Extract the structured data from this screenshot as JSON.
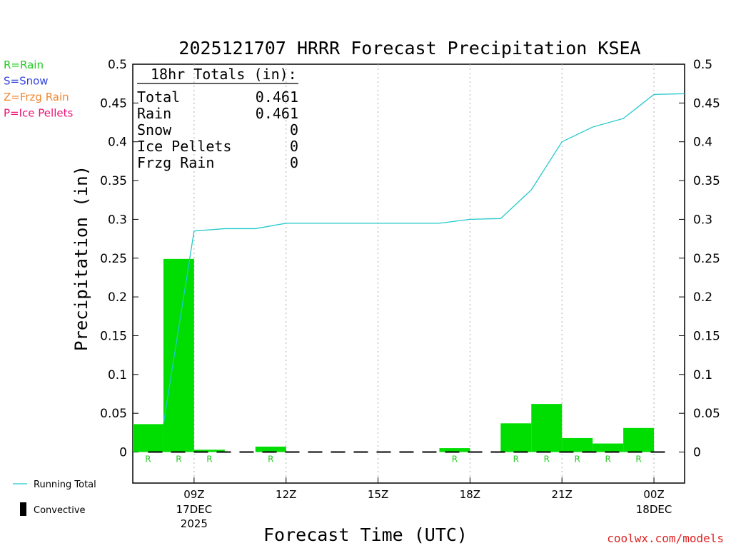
{
  "chart_data": {
    "type": "bar",
    "title": "2025121707 HRRR Forecast Precipitation KSEA",
    "ylabel": "Precipitation (in)",
    "xlabel": "Forecast Time (UTC)",
    "ylim": [
      -0.04,
      0.5
    ],
    "y_ticks": [
      "0.5",
      "0.45",
      "0.4",
      "0.35",
      "0.3",
      "0.25",
      "0.2",
      "0.15",
      "0.1",
      "0.05",
      "0"
    ],
    "y_tick_values": [
      0.5,
      0.45,
      0.4,
      0.35,
      0.3,
      0.25,
      0.2,
      0.15,
      0.1,
      0.05,
      0
    ],
    "x_ticks": [
      {
        "hour": 9,
        "line1": "09Z",
        "line2": "17DEC",
        "line3": "2025"
      },
      {
        "hour": 12,
        "line1": "12Z",
        "line2": "",
        "line3": ""
      },
      {
        "hour": 15,
        "line1": "15Z",
        "line2": "",
        "line3": ""
      },
      {
        "hour": 18,
        "line1": "18Z",
        "line2": "",
        "line3": ""
      },
      {
        "hour": 21,
        "line1": "21Z",
        "line2": "",
        "line3": ""
      },
      {
        "hour": 24,
        "line1": "00Z",
        "line2": "18DEC",
        "line3": ""
      }
    ],
    "xlim": [
      7,
      25
    ],
    "bars": [
      {
        "hour": 8,
        "value": 0.036,
        "ptype": "R"
      },
      {
        "hour": 9,
        "value": 0.249,
        "ptype": "R"
      },
      {
        "hour": 10,
        "value": 0.003,
        "ptype": "R"
      },
      {
        "hour": 11,
        "value": 0.0,
        "ptype": ""
      },
      {
        "hour": 12,
        "value": 0.007,
        "ptype": "R"
      },
      {
        "hour": 13,
        "value": 0.0,
        "ptype": ""
      },
      {
        "hour": 14,
        "value": 0.0,
        "ptype": ""
      },
      {
        "hour": 15,
        "value": 0.0,
        "ptype": ""
      },
      {
        "hour": 16,
        "value": 0.0,
        "ptype": ""
      },
      {
        "hour": 17,
        "value": 0.0,
        "ptype": ""
      },
      {
        "hour": 18,
        "value": 0.005,
        "ptype": "R"
      },
      {
        "hour": 19,
        "value": 0.0,
        "ptype": ""
      },
      {
        "hour": 20,
        "value": 0.037,
        "ptype": "R"
      },
      {
        "hour": 21,
        "value": 0.062,
        "ptype": "R"
      },
      {
        "hour": 22,
        "value": 0.018,
        "ptype": "R"
      },
      {
        "hour": 23,
        "value": 0.011,
        "ptype": "R"
      },
      {
        "hour": 24,
        "value": 0.031,
        "ptype": "R"
      }
    ],
    "running_total": {
      "name": "Running Total",
      "points": [
        [
          8,
          0.036
        ],
        [
          9,
          0.285
        ],
        [
          10,
          0.288
        ],
        [
          11,
          0.288
        ],
        [
          12,
          0.295
        ],
        [
          13,
          0.295
        ],
        [
          14,
          0.295
        ],
        [
          15,
          0.295
        ],
        [
          16,
          0.295
        ],
        [
          17,
          0.295
        ],
        [
          18,
          0.3
        ],
        [
          19,
          0.301
        ],
        [
          20,
          0.338
        ],
        [
          21,
          0.4
        ],
        [
          22,
          0.419
        ],
        [
          23,
          0.43
        ],
        [
          24,
          0.461
        ],
        [
          25,
          0.462
        ]
      ]
    },
    "totals_box": {
      "heading": "18hr Totals (in):",
      "rows": [
        {
          "label": "Total",
          "value": "0.461"
        },
        {
          "label": "Rain",
          "value": "0.461"
        },
        {
          "label": "Snow",
          "value": "0"
        },
        {
          "label": "Ice Pellets",
          "value": "0"
        },
        {
          "label": "Frzg Rain",
          "value": "0"
        }
      ]
    },
    "ptype_legend": [
      {
        "text": "R=Rain",
        "color": "#22cc22"
      },
      {
        "text": "S=Snow",
        "color": "#3344dd"
      },
      {
        "text": "Z=Frzg Rain",
        "color": "#ee8833"
      },
      {
        "text": "P=Ice Pellets",
        "color": "#ee1177"
      }
    ],
    "bottom_legend": {
      "running_total_label": "Running Total",
      "convective_label": "Convective"
    },
    "credit": "coolwx.com/models",
    "colors": {
      "bar": "#00dd00",
      "running_total": "#22c8cc",
      "credit": "#dd2222",
      "ptype_R": "#22cc22"
    }
  }
}
